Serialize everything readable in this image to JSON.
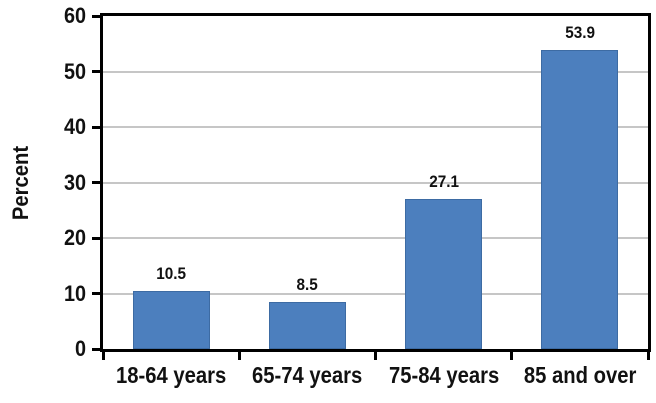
{
  "chart_data": {
    "type": "bar",
    "title": "",
    "categories": [
      "18-64 years",
      "65-74 years",
      "75-84 years",
      "85 and over"
    ],
    "values": [
      10.5,
      8.5,
      27.1,
      53.9
    ],
    "value_labels": [
      "10.5",
      "8.5",
      "27.1",
      "53.9"
    ],
    "ylabel": "Percent",
    "xlabel": "",
    "ylim": [
      0,
      60
    ],
    "yticks": [
      0,
      10,
      20,
      30,
      40,
      50,
      60
    ],
    "grid": true,
    "legend": "none",
    "colors": {
      "bar_fill": "#4C7FBE",
      "bar_border": "#3D6BA3",
      "gridline": "#C6C6C6",
      "axis": "#000000",
      "background": "#FFFFFF",
      "text": "#111111"
    }
  }
}
